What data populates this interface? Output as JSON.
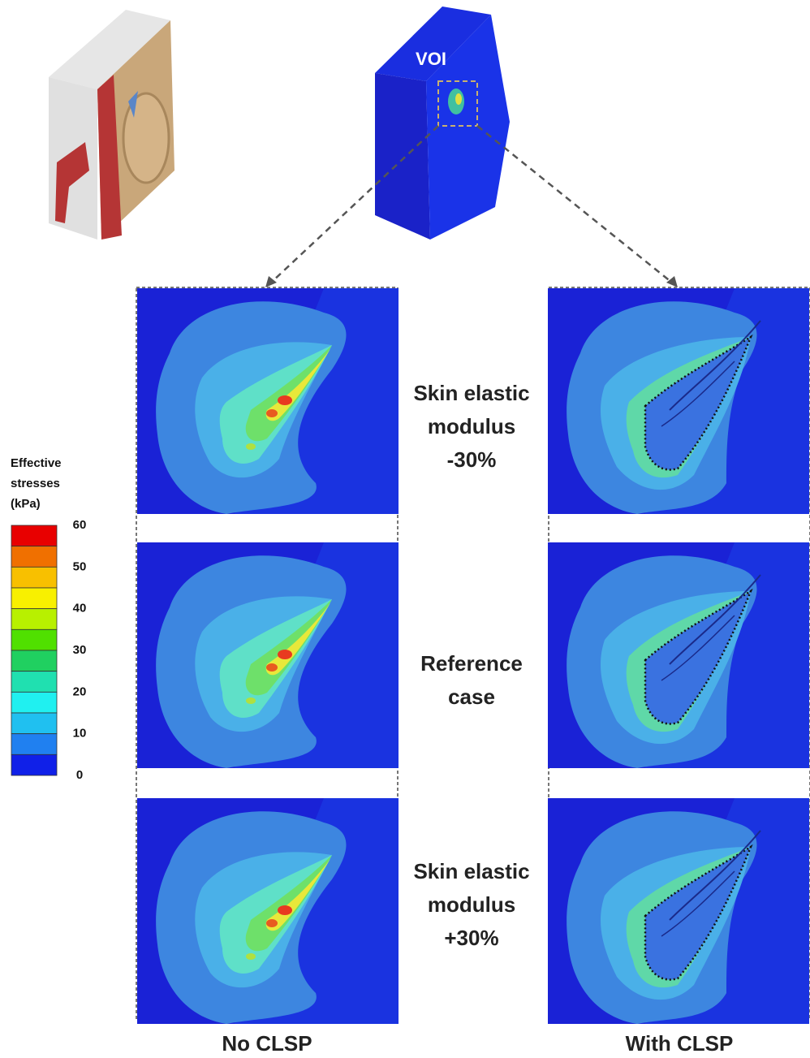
{
  "top": {
    "voi_label": "VOI"
  },
  "legend": {
    "title": [
      "Effective",
      "stresses",
      "(kPa)"
    ],
    "ticks": [
      60,
      50,
      40,
      30,
      20,
      10,
      0
    ]
  },
  "rows": [
    {
      "label": [
        "Skin elastic",
        "modulus",
        "-30%"
      ]
    },
    {
      "label": [
        "Reference",
        "case"
      ]
    },
    {
      "label": [
        "Skin elastic",
        "modulus",
        "+30%"
      ]
    }
  ],
  "columns": [
    "No CLSP",
    "With CLSP"
  ]
}
